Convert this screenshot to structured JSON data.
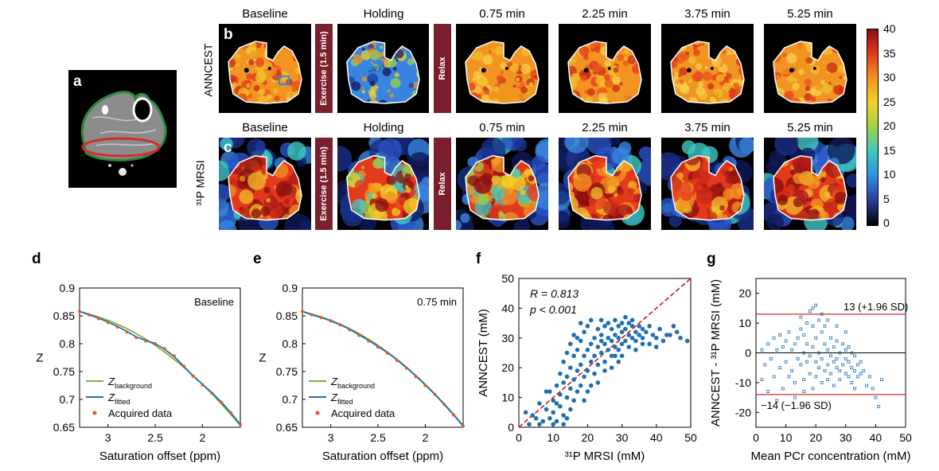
{
  "panel_labels": {
    "a": "a",
    "b": "b",
    "c": "c",
    "d": "d",
    "e": "e",
    "f": "f",
    "g": "g"
  },
  "row_b": {
    "label": "ANNCEST",
    "titles": [
      "Baseline",
      "Holding",
      "0.75 min",
      "2.25 min",
      "3.75 min",
      "5.25 min"
    ],
    "exercise": "Exercise (1.5 min)",
    "relax": "Relax"
  },
  "row_c": {
    "label": "³¹P MRSI",
    "titles": [
      "Baseline",
      "Holding",
      "0.75 min",
      "2.25 min",
      "3.75 min",
      "5.25 min"
    ],
    "exercise": "Exercise (1.5 min)",
    "relax": "Relax"
  },
  "colorbar": {
    "ticks": [
      "40",
      "35",
      "30",
      "25",
      "20",
      "15",
      "10",
      "5",
      "0"
    ],
    "stops": [
      "#000000",
      "#2a3a9a",
      "#2f8ee0",
      "#3fc7c0",
      "#9ed24a",
      "#f2d22a",
      "#f29422",
      "#e43a1c",
      "#8a0e12"
    ]
  },
  "chart_data": [
    {
      "id": "d",
      "type": "line",
      "annotation": "Baseline",
      "xlabel": "Saturation offset (ppm)",
      "ylabel": "Z",
      "xlim": [
        3.3,
        1.6
      ],
      "ylim": [
        0.65,
        0.9
      ],
      "xticks": [
        "3",
        "2.5",
        "2"
      ],
      "yticks": [
        "0.65",
        "0.7",
        "0.75",
        "0.8",
        "0.85",
        "0.9"
      ],
      "legend": [
        "Z_background",
        "Z_fitted",
        "Acquired data"
      ],
      "x": [
        3.3,
        3.2,
        3.1,
        3.0,
        2.9,
        2.8,
        2.7,
        2.6,
        2.5,
        2.4,
        2.3,
        2.2,
        2.1,
        2.0,
        1.9,
        1.8,
        1.7,
        1.6
      ],
      "series": [
        {
          "name": "Z_background",
          "color": "#7ab23a",
          "values": [
            0.858,
            0.853,
            0.848,
            0.842,
            0.835,
            0.827,
            0.818,
            0.808,
            0.797,
            0.785,
            0.772,
            0.758,
            0.743,
            0.727,
            0.71,
            0.692,
            0.673,
            0.653
          ]
        },
        {
          "name": "Z_fitted",
          "color": "#1f6fb2",
          "values": [
            0.858,
            0.852,
            0.846,
            0.839,
            0.831,
            0.822,
            0.812,
            0.806,
            0.8,
            0.79,
            0.777,
            0.76,
            0.742,
            0.727,
            0.712,
            0.695,
            0.676,
            0.655
          ]
        },
        {
          "name": "Acquired data",
          "color": "#e8562a",
          "values": [
            0.858,
            0.852,
            0.845,
            0.838,
            0.83,
            0.821,
            0.811,
            0.805,
            0.8,
            0.791,
            0.778,
            0.76,
            0.742,
            0.726,
            0.711,
            0.695,
            0.676,
            0.655
          ]
        }
      ]
    },
    {
      "id": "e",
      "type": "line",
      "annotation": "0.75 min",
      "xlabel": "Saturation offset (ppm)",
      "ylabel": "Z",
      "xlim": [
        3.3,
        1.6
      ],
      "ylim": [
        0.65,
        0.9
      ],
      "xticks": [
        "3",
        "2.5",
        "2"
      ],
      "yticks": [
        "0.65",
        "0.7",
        "0.75",
        "0.8",
        "0.85",
        "0.9"
      ],
      "legend": [
        "Z_background",
        "Z_fitted",
        "Acquired data"
      ],
      "x": [
        3.3,
        3.2,
        3.1,
        3.0,
        2.9,
        2.8,
        2.7,
        2.6,
        2.5,
        2.4,
        2.3,
        2.2,
        2.1,
        2.0,
        1.9,
        1.8,
        1.7,
        1.6
      ],
      "series": [
        {
          "name": "Z_background",
          "color": "#7ab23a",
          "values": [
            0.858,
            0.853,
            0.848,
            0.842,
            0.835,
            0.827,
            0.818,
            0.808,
            0.797,
            0.785,
            0.772,
            0.758,
            0.743,
            0.727,
            0.71,
            0.692,
            0.673,
            0.653
          ]
        },
        {
          "name": "Z_fitted",
          "color": "#1f6fb2",
          "values": [
            0.858,
            0.852,
            0.847,
            0.841,
            0.834,
            0.826,
            0.816,
            0.806,
            0.795,
            0.784,
            0.771,
            0.757,
            0.742,
            0.726,
            0.709,
            0.691,
            0.672,
            0.652
          ]
        },
        {
          "name": "Acquired data",
          "color": "#e8562a",
          "values": [
            0.858,
            0.852,
            0.847,
            0.841,
            0.834,
            0.825,
            0.815,
            0.805,
            0.794,
            0.783,
            0.77,
            0.756,
            0.741,
            0.725,
            0.709,
            0.691,
            0.672,
            0.652
          ]
        }
      ]
    },
    {
      "id": "f",
      "type": "scatter",
      "xlabel": "³¹P MRSI (mM)",
      "ylabel": "ANNCEST (mM)",
      "xlim": [
        0,
        50
      ],
      "ylim": [
        0,
        50
      ],
      "xticks": [
        "0",
        "10",
        "20",
        "30",
        "40",
        "50"
      ],
      "yticks": [
        "0",
        "10",
        "20",
        "30",
        "40",
        "50"
      ],
      "stats": {
        "r": "R = 0.813",
        "p": "p < 0.001"
      },
      "points": [
        [
          2,
          5
        ],
        [
          3,
          1
        ],
        [
          5,
          3
        ],
        [
          6,
          8
        ],
        [
          7,
          2
        ],
        [
          8,
          6
        ],
        [
          8,
          12
        ],
        [
          9,
          3
        ],
        [
          10,
          1
        ],
        [
          10,
          5
        ],
        [
          10,
          9
        ],
        [
          11,
          14
        ],
        [
          11,
          2
        ],
        [
          12,
          7
        ],
        [
          12,
          18
        ],
        [
          12,
          11
        ],
        [
          13,
          4
        ],
        [
          13,
          15
        ],
        [
          13,
          22
        ],
        [
          14,
          10
        ],
        [
          14,
          17
        ],
        [
          14,
          25
        ],
        [
          15,
          6
        ],
        [
          15,
          13
        ],
        [
          15,
          20
        ],
        [
          15,
          28
        ],
        [
          16,
          9
        ],
        [
          16,
          16
        ],
        [
          16,
          24
        ],
        [
          16,
          31
        ],
        [
          17,
          12
        ],
        [
          17,
          19
        ],
        [
          17,
          26
        ],
        [
          18,
          14
        ],
        [
          18,
          21
        ],
        [
          18,
          29
        ],
        [
          18,
          35
        ],
        [
          19,
          17
        ],
        [
          19,
          24
        ],
        [
          19,
          32
        ],
        [
          20,
          19
        ],
        [
          20,
          26
        ],
        [
          20,
          34
        ],
        [
          21,
          22
        ],
        [
          21,
          28
        ],
        [
          21,
          36
        ],
        [
          22,
          24
        ],
        [
          22,
          30
        ],
        [
          22,
          18
        ],
        [
          23,
          27
        ],
        [
          23,
          33
        ],
        [
          23,
          21
        ],
        [
          24,
          25
        ],
        [
          24,
          31
        ],
        [
          24,
          29
        ],
        [
          25,
          28
        ],
        [
          25,
          34
        ],
        [
          25,
          22
        ],
        [
          26,
          26
        ],
        [
          26,
          30
        ],
        [
          26,
          35
        ],
        [
          27,
          29
        ],
        [
          27,
          33
        ],
        [
          27,
          24
        ],
        [
          28,
          27
        ],
        [
          28,
          31
        ],
        [
          28,
          36
        ],
        [
          29,
          30
        ],
        [
          29,
          34
        ],
        [
          29,
          26
        ],
        [
          30,
          32
        ],
        [
          30,
          28
        ],
        [
          30,
          35
        ],
        [
          31,
          29
        ],
        [
          31,
          33
        ],
        [
          31,
          37
        ],
        [
          32,
          31
        ],
        [
          32,
          35
        ],
        [
          32,
          27
        ],
        [
          33,
          30
        ],
        [
          33,
          34
        ],
        [
          33,
          36
        ],
        [
          34,
          32
        ],
        [
          34,
          29
        ],
        [
          35,
          31
        ],
        [
          35,
          34
        ],
        [
          36,
          30
        ],
        [
          36,
          33
        ],
        [
          37,
          32
        ],
        [
          38,
          28
        ],
        [
          38,
          34
        ],
        [
          39,
          31
        ],
        [
          40,
          30
        ],
        [
          41,
          33
        ],
        [
          42,
          29
        ],
        [
          43,
          31
        ],
        [
          45,
          34
        ],
        [
          47,
          30
        ],
        [
          49,
          29
        ],
        [
          4,
          4
        ],
        [
          6,
          1
        ],
        [
          9,
          12
        ],
        [
          11,
          8
        ],
        [
          13,
          1
        ],
        [
          14,
          3
        ],
        [
          17,
          30
        ],
        [
          20,
          12
        ],
        [
          23,
          15
        ],
        [
          25,
          19
        ],
        [
          19,
          9
        ],
        [
          21,
          14
        ],
        [
          27,
          20
        ],
        [
          29,
          22
        ],
        [
          24,
          36
        ],
        [
          28,
          24
        ],
        [
          30,
          24
        ],
        [
          34,
          26
        ],
        [
          36,
          28
        ],
        [
          40,
          27
        ],
        [
          44,
          31
        ],
        [
          46,
          32
        ]
      ]
    },
    {
      "id": "g",
      "type": "scatter",
      "xlabel": "Mean PCr concentration (mM)",
      "ylabel": "ANNCEST - ³¹P MRSI (mM)",
      "xlim": [
        0,
        50
      ],
      "ylim": [
        -25,
        25
      ],
      "xticks": [
        "0",
        "10",
        "20",
        "30",
        "40",
        "50"
      ],
      "yticks": [
        "-20",
        "-10",
        "0",
        "10",
        "20"
      ],
      "upper": {
        "value": 13,
        "label": "13 (+1.96 SD)"
      },
      "lower": {
        "value": -14,
        "label": "−14 (−1.96 SD)"
      },
      "points": [
        [
          2,
          1
        ],
        [
          3,
          -4
        ],
        [
          4,
          3
        ],
        [
          5,
          -2
        ],
        [
          6,
          5
        ],
        [
          6,
          -8
        ],
        [
          7,
          1
        ],
        [
          8,
          -5
        ],
        [
          8,
          6
        ],
        [
          9,
          -12
        ],
        [
          9,
          2
        ],
        [
          10,
          4
        ],
        [
          10,
          -3
        ],
        [
          11,
          -8
        ],
        [
          11,
          7
        ],
        [
          12,
          1
        ],
        [
          12,
          -6
        ],
        [
          13,
          3
        ],
        [
          13,
          -10
        ],
        [
          14,
          5
        ],
        [
          14,
          -2
        ],
        [
          15,
          8
        ],
        [
          15,
          -4
        ],
        [
          15,
          12
        ],
        [
          16,
          0
        ],
        [
          16,
          6
        ],
        [
          16,
          -9
        ],
        [
          17,
          10
        ],
        [
          17,
          -3
        ],
        [
          17,
          3
        ],
        [
          18,
          14
        ],
        [
          18,
          -1
        ],
        [
          18,
          -7
        ],
        [
          19,
          9
        ],
        [
          19,
          2
        ],
        [
          19,
          -12
        ],
        [
          20,
          16
        ],
        [
          20,
          5
        ],
        [
          20,
          -3
        ],
        [
          20,
          -8
        ],
        [
          21,
          11
        ],
        [
          21,
          0
        ],
        [
          21,
          -5
        ],
        [
          22,
          7
        ],
        [
          22,
          -2
        ],
        [
          22,
          -10
        ],
        [
          23,
          3
        ],
        [
          23,
          -6
        ],
        [
          23,
          9
        ],
        [
          24,
          1
        ],
        [
          24,
          -4
        ],
        [
          24,
          -9
        ],
        [
          25,
          5
        ],
        [
          25,
          -1
        ],
        [
          25,
          -7
        ],
        [
          26,
          2
        ],
        [
          26,
          -3
        ],
        [
          26,
          -11
        ],
        [
          27,
          4
        ],
        [
          27,
          -5
        ],
        [
          27,
          -2
        ],
        [
          28,
          0
        ],
        [
          28,
          -6
        ],
        [
          28,
          -9
        ],
        [
          29,
          3
        ],
        [
          29,
          -4
        ],
        [
          30,
          1
        ],
        [
          30,
          -2
        ],
        [
          30,
          -7
        ],
        [
          31,
          -3
        ],
        [
          31,
          -8
        ],
        [
          31,
          2
        ],
        [
          32,
          0
        ],
        [
          32,
          -5
        ],
        [
          32,
          -10
        ],
        [
          33,
          -1
        ],
        [
          33,
          -6
        ],
        [
          33,
          -12
        ],
        [
          34,
          -4
        ],
        [
          34,
          -8
        ],
        [
          35,
          -3
        ],
        [
          35,
          -7
        ],
        [
          36,
          -6
        ],
        [
          37,
          -11
        ],
        [
          38,
          -8
        ],
        [
          39,
          -12
        ],
        [
          40,
          -15
        ],
        [
          41,
          -18
        ],
        [
          42,
          -9
        ],
        [
          2,
          -9
        ],
        [
          4,
          -13
        ],
        [
          7,
          -16
        ],
        [
          16,
          -13
        ],
        [
          13,
          -15
        ],
        [
          19,
          15
        ],
        [
          22,
          13
        ],
        [
          24,
          11
        ],
        [
          27,
          9
        ],
        [
          30,
          7
        ]
      ]
    }
  ]
}
